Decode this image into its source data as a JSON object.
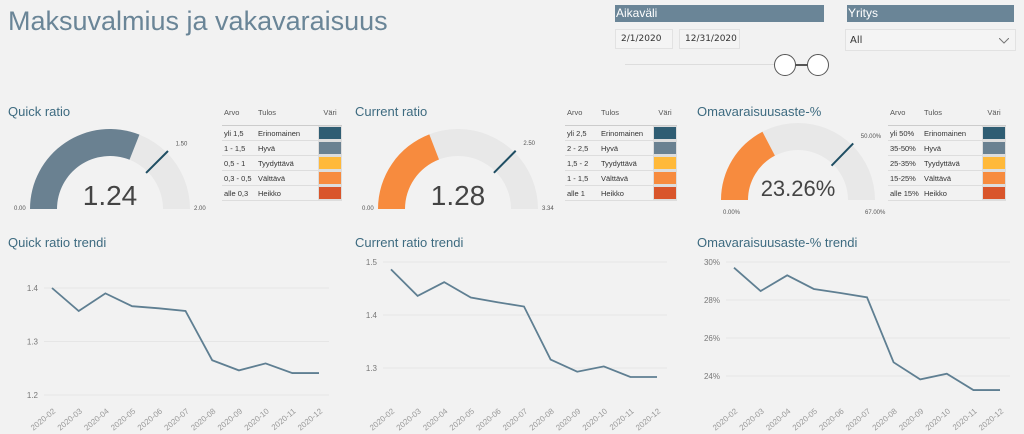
{
  "title": "Maksuvalmius ja vakavaraisuus",
  "slicers": {
    "period": {
      "label": "Aikaväli",
      "start": "2/1/2020",
      "end": "12/31/2020"
    },
    "company": {
      "label": "Yritys",
      "value": "All"
    }
  },
  "gauges": [
    {
      "title": "Quick ratio",
      "value": 1.24,
      "value_label": "1.24",
      "min_label": "0.00",
      "max_label": "2.00",
      "target_label": "1.50",
      "min": 0,
      "max": 2,
      "target": 1.5,
      "color": "#6a8191",
      "legend": {
        "headers": [
          "Arvo",
          "Tulos",
          "Väri"
        ],
        "rows": [
          [
            "yli 1,5",
            "Erinomainen",
            "#2f5d73"
          ],
          [
            "1 - 1,5",
            "Hyvä",
            "#6a8191"
          ],
          [
            "0,5 - 1",
            "Tyydyttävä",
            "#ffb93a"
          ],
          [
            "0,3 - 0,5",
            "Välttävä",
            "#f78b3e"
          ],
          [
            "alle 0,3",
            "Heikko",
            "#d9552b"
          ]
        ]
      }
    },
    {
      "title": "Current ratio",
      "value": 1.28,
      "value_label": "1.28",
      "min_label": "0.00",
      "max_label": "3.34",
      "target_label": "2.50",
      "min": 0,
      "max": 3.34,
      "target": 2.5,
      "color": "#f78b3e",
      "legend": {
        "headers": [
          "Arvo",
          "Tulos",
          "Väri"
        ],
        "rows": [
          [
            "yli 2,5",
            "Erinomainen",
            "#2f5d73"
          ],
          [
            "2 - 2,5",
            "Hyvä",
            "#6a8191"
          ],
          [
            "1,5 - 2",
            "Tyydyttävä",
            "#ffb93a"
          ],
          [
            "1 - 1,5",
            "Välttävä",
            "#f78b3e"
          ],
          [
            "alle 1",
            "Heikko",
            "#d9552b"
          ]
        ]
      }
    },
    {
      "title": "Omavaraisuusaste-%",
      "value": 23.26,
      "value_label": "23.26%",
      "min_label": "0.00%",
      "max_label": "67.00%",
      "target_label": "50.00%",
      "min": 0,
      "max": 67,
      "target": 50,
      "color": "#f78b3e",
      "legend": {
        "headers": [
          "Arvo",
          "Tulos",
          "Väri"
        ],
        "rows": [
          [
            "yli 50%",
            "Erinomainen",
            "#2f5d73"
          ],
          [
            "35-50%",
            "Hyvä",
            "#6a8191"
          ],
          [
            "25-35%",
            "Tyydyttävä",
            "#ffb93a"
          ],
          [
            "15-25%",
            "Välttävä",
            "#f78b3e"
          ],
          [
            "alle 15%",
            "Heikko",
            "#d9552b"
          ]
        ]
      }
    }
  ],
  "chart_data": [
    {
      "type": "line",
      "title": "Quick ratio trendi",
      "categories": [
        "2020-02",
        "2020-03",
        "2020-04",
        "2020-05",
        "2020-06",
        "2020-07",
        "2020-08",
        "2020-09",
        "2020-10",
        "2020-11",
        "2020-12"
      ],
      "values": [
        1.4,
        1.357,
        1.39,
        1.366,
        1.362,
        1.357,
        1.265,
        1.246,
        1.259,
        1.241,
        1.241
      ],
      "yticks": [
        1.2,
        1.3,
        1.4
      ],
      "ytick_labels": [
        "1.2",
        "1.3",
        "1.4"
      ],
      "ylim": [
        1.2,
        1.4
      ],
      "color": "#5f7f92"
    },
    {
      "type": "line",
      "title": "Current ratio trendi",
      "categories": [
        "2020-02",
        "2020-03",
        "2020-04",
        "2020-05",
        "2020-06",
        "2020-07",
        "2020-08",
        "2020-09",
        "2020-10",
        "2020-11",
        "2020-12"
      ],
      "values": [
        1.486,
        1.436,
        1.462,
        1.433,
        1.424,
        1.416,
        1.316,
        1.293,
        1.303,
        1.283,
        1.283
      ],
      "yticks": [
        1.3,
        1.4,
        1.5
      ],
      "ytick_labels": [
        "1.3",
        "1.4",
        "1.5"
      ],
      "ylim": [
        1.3,
        1.5
      ],
      "color": "#5f7f92"
    },
    {
      "type": "line",
      "title": "Omavaraisuusaste-% trendi",
      "categories": [
        "2020-02",
        "2020-03",
        "2020-04",
        "2020-05",
        "2020-06",
        "2020-07",
        "2020-08",
        "2020-09",
        "2020-10",
        "2020-11",
        "2020-12"
      ],
      "values": [
        29.7,
        28.47,
        29.3,
        28.58,
        28.37,
        28.14,
        24.72,
        23.82,
        24.12,
        23.26,
        23.26
      ],
      "yticks": [
        24,
        26,
        28,
        30
      ],
      "ytick_labels": [
        "24%",
        "26%",
        "28%",
        "30%"
      ],
      "ylim": [
        24,
        30
      ],
      "color": "#5f7f92"
    }
  ]
}
